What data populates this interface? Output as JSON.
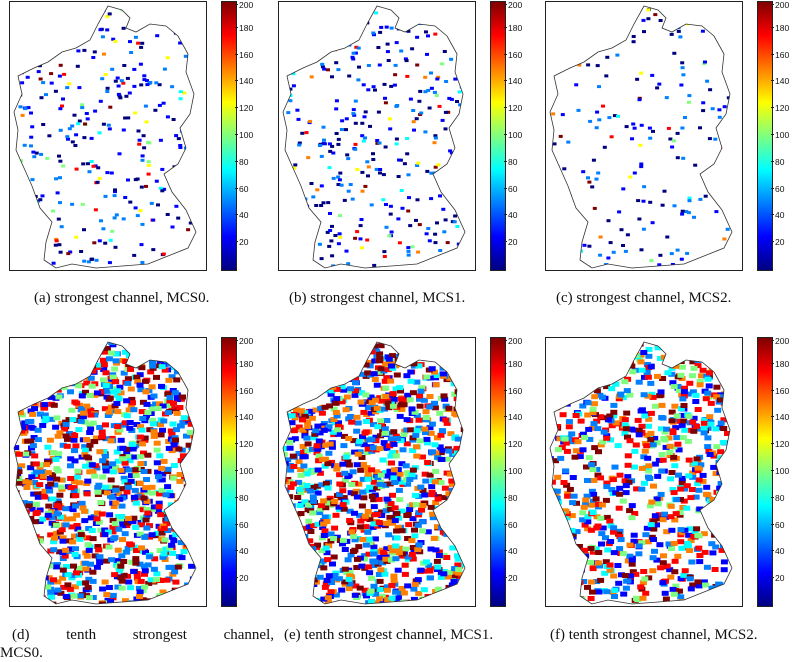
{
  "figure": {
    "panels": [
      {
        "id": "a",
        "caption": "(a) strongest channel, MCS0."
      },
      {
        "id": "b",
        "caption": "(b) strongest channel, MCS1."
      },
      {
        "id": "c",
        "caption": "(c) strongest channel, MCS2."
      },
      {
        "id": "d",
        "caption_line1_words": [
          "(d)",
          "tenth",
          "strongest",
          "channel,"
        ],
        "caption_line2": "MCS0."
      },
      {
        "id": "e",
        "caption": "(e) tenth strongest channel, MCS1."
      },
      {
        "id": "f",
        "caption": "(f) tenth strongest channel, MCS2."
      }
    ],
    "colorbar": {
      "ticks": [
        "200",
        "180",
        "160",
        "140",
        "120",
        "100",
        "80",
        "60",
        "40",
        "20"
      ],
      "range": [
        0,
        200
      ],
      "colormap": "jet",
      "colors": [
        "#00007f",
        "#0000ff",
        "#007fff",
        "#00ffff",
        "#7fff7f",
        "#ffff00",
        "#ff7f00",
        "#ff0000",
        "#7f0000"
      ]
    }
  },
  "chart_data": {
    "type": "heatmap",
    "panels": [
      "a",
      "b",
      "c",
      "d",
      "e",
      "f"
    ],
    "zlim": [
      0,
      200
    ],
    "colorbar_ticks": [
      20,
      40,
      60,
      80,
      100,
      120,
      140,
      160,
      180,
      200
    ]
  }
}
